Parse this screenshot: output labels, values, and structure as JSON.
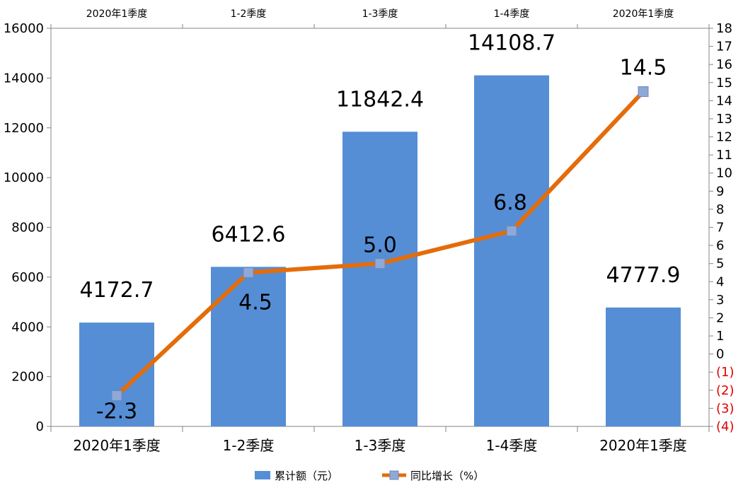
{
  "chart_data": {
    "type": "bar",
    "categories": [
      "2020年1季度",
      "1-2季度",
      "1-3季度",
      "1-4季度",
      "2020年1季度"
    ],
    "series": [
      {
        "name": "累计额（元）",
        "type": "bar",
        "axis": "left",
        "values": [
          4172.7,
          6412.6,
          11842.4,
          14108.7,
          4777.9
        ],
        "labels": [
          "4172.7",
          "6412.6",
          "11842.4",
          "14108.7",
          "4777.9"
        ],
        "color": "#558ED5"
      },
      {
        "name": "同比增长（%）",
        "type": "line",
        "axis": "right",
        "values": [
          -2.3,
          4.5,
          5.0,
          6.8,
          14.5
        ],
        "labels": [
          "-2.3",
          "4.5",
          "5.0",
          "6.8",
          "14.5"
        ],
        "color": "#E46C0A",
        "marker_color": "#8EA9D8"
      }
    ],
    "y_left": {
      "range": [
        0,
        16000
      ],
      "ticks": [
        0,
        2000,
        4000,
        6000,
        8000,
        10000,
        12000,
        14000,
        16000
      ]
    },
    "y_right": {
      "range": [
        -4,
        18
      ],
      "ticks": [
        -4,
        -3,
        -2,
        -1,
        0,
        1,
        2,
        3,
        4,
        5,
        6,
        7,
        8,
        9,
        10,
        11,
        12,
        13,
        14,
        15,
        16,
        17,
        18
      ],
      "tick_labels": [
        "(4)",
        "(3)",
        "(2)",
        "(1)",
        "0",
        "1",
        "2",
        "3",
        "4",
        "5",
        "6",
        "7",
        "8",
        "9",
        "10",
        "11",
        "12",
        "13",
        "14",
        "15",
        "16",
        "17",
        "18"
      ],
      "negative_color": "#E00000"
    },
    "top_axis_labels": [
      "2020年1季度",
      "1-2季度",
      "1-3季度",
      "1-4季度",
      "2020年1季度"
    ],
    "grid": false,
    "legend": "bottom"
  }
}
